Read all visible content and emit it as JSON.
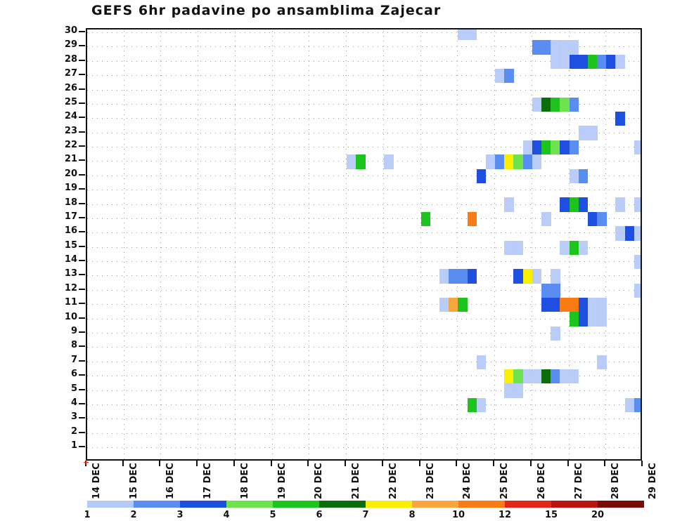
{
  "title": "GEFS 6hr padavine po ansamblima Zajecar",
  "chart_data": {
    "type": "heatmap",
    "title": "GEFS 6hr padavine po ansamblima Zajecar",
    "xlabel": "",
    "ylabel": "",
    "x_tick_labels": [
      "14 DEC",
      "15 DEC",
      "16 DEC",
      "17 DEC",
      "18 DEC",
      "19 DEC",
      "20 DEC",
      "21 DEC",
      "22 DEC",
      "23 DEC",
      "24 DEC",
      "25 DEC",
      "26 DEC",
      "27 DEC",
      "28 DEC",
      "29 DEC"
    ],
    "x_steps_per_day": 4,
    "x_total_steps": 60,
    "y_axis": {
      "min": 1,
      "max": 30,
      "meaning": "ensemble member"
    },
    "grid": "dotted",
    "legend": {
      "position": "bottom",
      "values": [
        "1",
        "2",
        "3",
        "4",
        "5",
        "6",
        "7",
        "8",
        "10",
        "12",
        "15",
        "20"
      ],
      "colors": {
        "1": "#b3c9f7",
        "2": "#5a8df2",
        "3": "#1e4fe0",
        "4": "#6fe34d",
        "5": "#1ec41e",
        "6": "#0b6e0b",
        "7": "#f8f000",
        "8": "#f9a63e",
        "10": "#f87b14",
        "12": "#e22618",
        "15": "#bb1410",
        "20": "#7a0c08"
      }
    },
    "cells_format": [
      "member_row",
      "six_hour_step_index_from_14DEC",
      "precip_bin"
    ],
    "cells": [
      [
        30,
        40,
        "1"
      ],
      [
        30,
        41,
        "1"
      ],
      [
        29,
        48,
        "2"
      ],
      [
        29,
        49,
        "2"
      ],
      [
        29,
        50,
        "1"
      ],
      [
        29,
        51,
        "1"
      ],
      [
        29,
        52,
        "1"
      ],
      [
        28,
        50,
        "1"
      ],
      [
        28,
        51,
        "1"
      ],
      [
        28,
        52,
        "3"
      ],
      [
        28,
        53,
        "3"
      ],
      [
        28,
        54,
        "5"
      ],
      [
        28,
        55,
        "2"
      ],
      [
        28,
        56,
        "3"
      ],
      [
        28,
        57,
        "1"
      ],
      [
        27,
        44,
        "1"
      ],
      [
        27,
        45,
        "2"
      ],
      [
        25,
        48,
        "1"
      ],
      [
        25,
        49,
        "6"
      ],
      [
        25,
        50,
        "5"
      ],
      [
        25,
        51,
        "4"
      ],
      [
        25,
        52,
        "2"
      ],
      [
        24,
        57,
        "3"
      ],
      [
        23,
        53,
        "1"
      ],
      [
        23,
        54,
        "1"
      ],
      [
        22,
        47,
        "1"
      ],
      [
        22,
        48,
        "3"
      ],
      [
        22,
        49,
        "5"
      ],
      [
        22,
        50,
        "4"
      ],
      [
        22,
        51,
        "3"
      ],
      [
        22,
        52,
        "2"
      ],
      [
        22,
        59,
        "1"
      ],
      [
        21,
        28,
        "1"
      ],
      [
        21,
        29,
        "5"
      ],
      [
        21,
        32,
        "1"
      ],
      [
        21,
        43,
        "1"
      ],
      [
        21,
        44,
        "2"
      ],
      [
        21,
        45,
        "7"
      ],
      [
        21,
        46,
        "4"
      ],
      [
        21,
        47,
        "2"
      ],
      [
        21,
        48,
        "1"
      ],
      [
        20,
        42,
        "3"
      ],
      [
        20,
        52,
        "1"
      ],
      [
        20,
        53,
        "2"
      ],
      [
        18,
        45,
        "1"
      ],
      [
        18,
        51,
        "3"
      ],
      [
        18,
        52,
        "5"
      ],
      [
        18,
        53,
        "3"
      ],
      [
        18,
        57,
        "1"
      ],
      [
        18,
        59,
        "1"
      ],
      [
        17,
        36,
        "5"
      ],
      [
        17,
        41,
        "10"
      ],
      [
        17,
        49,
        "1"
      ],
      [
        17,
        54,
        "3"
      ],
      [
        17,
        55,
        "2"
      ],
      [
        16,
        57,
        "1"
      ],
      [
        16,
        58,
        "3"
      ],
      [
        16,
        59,
        "1"
      ],
      [
        15,
        45,
        "1"
      ],
      [
        15,
        46,
        "1"
      ],
      [
        15,
        51,
        "1"
      ],
      [
        15,
        52,
        "5"
      ],
      [
        15,
        53,
        "1"
      ],
      [
        14,
        59,
        "1"
      ],
      [
        13,
        38,
        "1"
      ],
      [
        13,
        39,
        "2"
      ],
      [
        13,
        40,
        "2"
      ],
      [
        13,
        41,
        "3"
      ],
      [
        13,
        46,
        "3"
      ],
      [
        13,
        47,
        "7"
      ],
      [
        13,
        48,
        "1"
      ],
      [
        13,
        50,
        "1"
      ],
      [
        12,
        49,
        "2"
      ],
      [
        12,
        50,
        "2"
      ],
      [
        12,
        59,
        "1"
      ],
      [
        11,
        38,
        "1"
      ],
      [
        11,
        39,
        "8"
      ],
      [
        11,
        40,
        "5"
      ],
      [
        11,
        49,
        "3"
      ],
      [
        11,
        50,
        "3"
      ],
      [
        11,
        51,
        "10"
      ],
      [
        11,
        52,
        "10"
      ],
      [
        11,
        53,
        "3"
      ],
      [
        11,
        54,
        "1"
      ],
      [
        11,
        55,
        "1"
      ],
      [
        10,
        52,
        "5"
      ],
      [
        10,
        53,
        "3"
      ],
      [
        10,
        54,
        "1"
      ],
      [
        10,
        55,
        "1"
      ],
      [
        9,
        50,
        "1"
      ],
      [
        7,
        42,
        "1"
      ],
      [
        7,
        55,
        "1"
      ],
      [
        6,
        45,
        "7"
      ],
      [
        6,
        46,
        "4"
      ],
      [
        6,
        47,
        "1"
      ],
      [
        6,
        48,
        "1"
      ],
      [
        6,
        49,
        "6"
      ],
      [
        6,
        50,
        "2"
      ],
      [
        6,
        51,
        "1"
      ],
      [
        6,
        52,
        "1"
      ],
      [
        5,
        45,
        "1"
      ],
      [
        5,
        46,
        "1"
      ],
      [
        4,
        41,
        "5"
      ],
      [
        4,
        42,
        "1"
      ],
      [
        4,
        58,
        "1"
      ],
      [
        4,
        59,
        "2"
      ]
    ]
  },
  "decorations": {
    "origin_marker": "+"
  }
}
